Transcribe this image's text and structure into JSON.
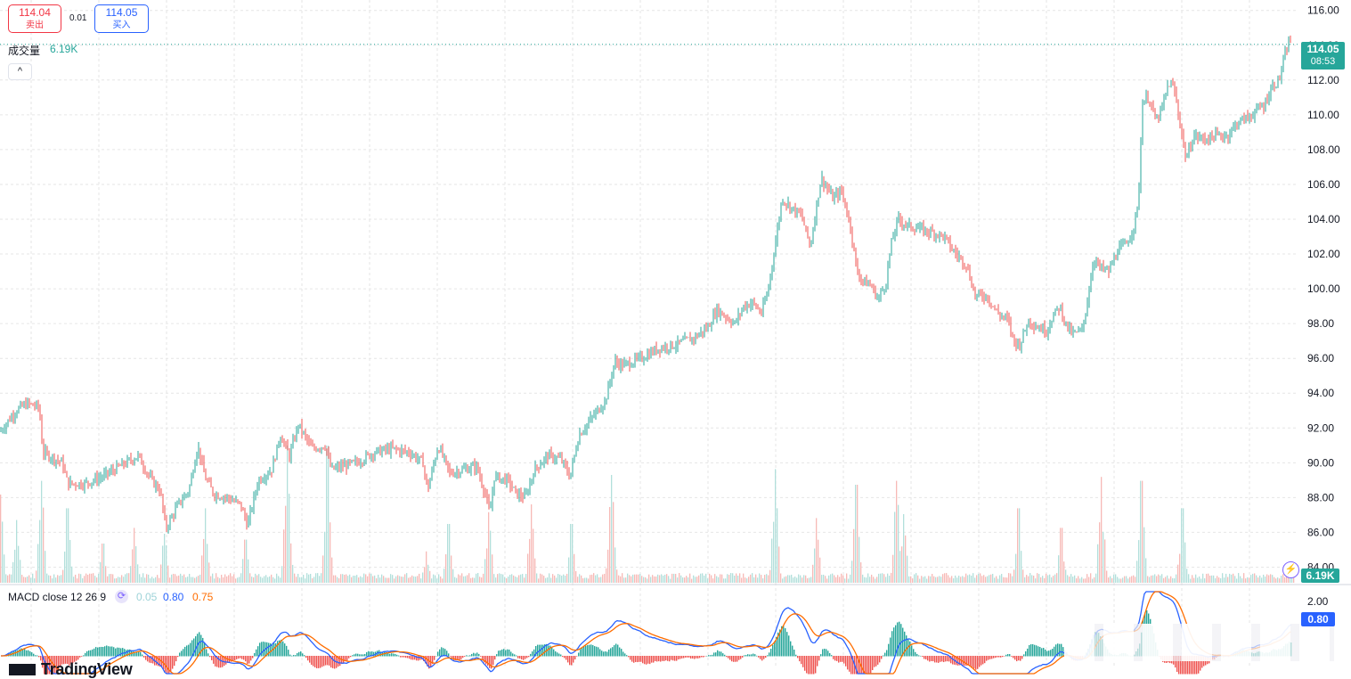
{
  "order_panel": {
    "sell_price": "114.04",
    "sell_label": "卖出",
    "spread": "0.01",
    "buy_price": "114.05",
    "buy_label": "买入"
  },
  "volume_legend": {
    "label": "成交量",
    "value": "6.19K"
  },
  "collapse_glyph": "^",
  "macd_legend": {
    "label": "MACD close 12 26 9",
    "hist_value": "0.05",
    "macd_value": "0.80",
    "signal_value": "0.75"
  },
  "last_price_tag": {
    "price": "114.05",
    "countdown": "08:53"
  },
  "volume_tag": "6.19K",
  "macd_tag": "0.80",
  "macd_axis_label": "2.00",
  "branding": "TradingView",
  "colors": {
    "up": "#26a69a",
    "down": "#ef5350",
    "macd_line": "#2962ff",
    "signal_line": "#ff6d00",
    "grid": "#e6e6e6"
  },
  "chart_data": {
    "type": "candlestick",
    "y_axis_ticks": [
      "116.00",
      "114.00",
      "112.00",
      "110.00",
      "108.00",
      "106.00",
      "104.00",
      "102.00",
      "100.00",
      "98.00",
      "96.00",
      "94.00",
      "92.00",
      "90.00",
      "88.00",
      "86.00",
      "84.00"
    ],
    "ylim": [
      83.0,
      116.6
    ],
    "last_price": 114.05,
    "close_path": [
      [
        0,
        91.8
      ],
      [
        18,
        93.0
      ],
      [
        30,
        93.4
      ],
      [
        44,
        93.2
      ],
      [
        48,
        90.6
      ],
      [
        70,
        90.0
      ],
      [
        76,
        88.8
      ],
      [
        95,
        88.8
      ],
      [
        115,
        89.2
      ],
      [
        135,
        89.8
      ],
      [
        155,
        90.4
      ],
      [
        170,
        89.0
      ],
      [
        180,
        88.4
      ],
      [
        186,
        86.2
      ],
      [
        200,
        87.6
      ],
      [
        212,
        88.4
      ],
      [
        222,
        91.0
      ],
      [
        230,
        89.2
      ],
      [
        240,
        88.2
      ],
      [
        255,
        88.0
      ],
      [
        270,
        87.6
      ],
      [
        278,
        86.4
      ],
      [
        290,
        89.0
      ],
      [
        305,
        89.6
      ],
      [
        315,
        91.6
      ],
      [
        325,
        90.4
      ],
      [
        335,
        92.2
      ],
      [
        350,
        90.8
      ],
      [
        365,
        91.0
      ],
      [
        372,
        89.6
      ],
      [
        385,
        89.8
      ],
      [
        400,
        90.0
      ],
      [
        420,
        90.6
      ],
      [
        440,
        90.8
      ],
      [
        460,
        90.6
      ],
      [
        475,
        90.0
      ],
      [
        480,
        88.4
      ],
      [
        492,
        91.0
      ],
      [
        505,
        89.4
      ],
      [
        520,
        89.6
      ],
      [
        535,
        89.8
      ],
      [
        545,
        88.2
      ],
      [
        550,
        87.0
      ],
      [
        555,
        89.2
      ],
      [
        570,
        89.0
      ],
      [
        580,
        88.2
      ],
      [
        590,
        88.0
      ],
      [
        600,
        89.6
      ],
      [
        615,
        90.4
      ],
      [
        630,
        90.2
      ],
      [
        640,
        89.2
      ],
      [
        650,
        91.6
      ],
      [
        665,
        92.6
      ],
      [
        680,
        93.6
      ],
      [
        690,
        95.8
      ],
      [
        700,
        95.6
      ],
      [
        720,
        96.0
      ],
      [
        740,
        96.6
      ],
      [
        760,
        96.8
      ],
      [
        780,
        97.2
      ],
      [
        795,
        97.8
      ],
      [
        805,
        98.8
      ],
      [
        815,
        98.4
      ],
      [
        825,
        98.0
      ],
      [
        835,
        99.0
      ],
      [
        845,
        99.2
      ],
      [
        855,
        98.6
      ],
      [
        862,
        99.8
      ],
      [
        870,
        102.4
      ],
      [
        878,
        105.2
      ],
      [
        890,
        104.6
      ],
      [
        900,
        104.2
      ],
      [
        910,
        102.4
      ],
      [
        915,
        104.2
      ],
      [
        922,
        106.4
      ],
      [
        935,
        105.2
      ],
      [
        945,
        105.6
      ],
      [
        955,
        103.6
      ],
      [
        962,
        101.0
      ],
      [
        970,
        100.4
      ],
      [
        978,
        100.2
      ],
      [
        986,
        99.4
      ],
      [
        995,
        100.4
      ],
      [
        1000,
        102.4
      ],
      [
        1008,
        104.0
      ],
      [
        1020,
        103.6
      ],
      [
        1035,
        103.4
      ],
      [
        1050,
        103.2
      ],
      [
        1060,
        103.0
      ],
      [
        1070,
        102.2
      ],
      [
        1085,
        101.4
      ],
      [
        1095,
        99.6
      ],
      [
        1108,
        99.6
      ],
      [
        1120,
        98.6
      ],
      [
        1132,
        98.2
      ],
      [
        1138,
        97.0
      ],
      [
        1145,
        96.8
      ],
      [
        1155,
        98.2
      ],
      [
        1165,
        97.8
      ],
      [
        1175,
        97.6
      ],
      [
        1182,
        98.4
      ],
      [
        1190,
        99.0
      ],
      [
        1198,
        97.8
      ],
      [
        1205,
        97.4
      ],
      [
        1215,
        97.6
      ],
      [
        1222,
        99.6
      ],
      [
        1228,
        101.8
      ],
      [
        1235,
        101.2
      ],
      [
        1245,
        101.0
      ],
      [
        1255,
        102.2
      ],
      [
        1265,
        102.6
      ],
      [
        1272,
        103.4
      ],
      [
        1278,
        104.8
      ],
      [
        1283,
        110.8
      ],
      [
        1290,
        111.0
      ],
      [
        1298,
        109.6
      ],
      [
        1305,
        110.4
      ],
      [
        1312,
        111.8
      ],
      [
        1318,
        111.6
      ],
      [
        1324,
        109.8
      ],
      [
        1332,
        107.4
      ],
      [
        1340,
        108.8
      ],
      [
        1352,
        108.6
      ],
      [
        1365,
        108.8
      ],
      [
        1378,
        108.8
      ],
      [
        1390,
        109.6
      ],
      [
        1400,
        109.8
      ],
      [
        1410,
        110.2
      ],
      [
        1420,
        110.6
      ],
      [
        1428,
        111.6
      ],
      [
        1436,
        112.0
      ],
      [
        1442,
        113.2
      ],
      [
        1448,
        114.4
      ],
      [
        1450,
        114.05
      ]
    ],
    "volume_spikes": [
      [
        0,
        0.45
      ],
      [
        18,
        0.32
      ],
      [
        46,
        0.52
      ],
      [
        75,
        0.38
      ],
      [
        115,
        0.2
      ],
      [
        150,
        0.28
      ],
      [
        184,
        0.25
      ],
      [
        230,
        0.38
      ],
      [
        275,
        0.22
      ],
      [
        322,
        0.7
      ],
      [
        367,
        0.7
      ],
      [
        478,
        0.16
      ],
      [
        503,
        0.3
      ],
      [
        548,
        0.36
      ],
      [
        596,
        0.4
      ],
      [
        641,
        0.3
      ],
      [
        686,
        0.55
      ],
      [
        870,
        0.58
      ],
      [
        916,
        0.33
      ],
      [
        961,
        0.5
      ],
      [
        1006,
        0.52
      ],
      [
        1014,
        0.35
      ],
      [
        1143,
        0.38
      ],
      [
        1191,
        0.28
      ],
      [
        1236,
        0.54
      ],
      [
        1281,
        0.52
      ],
      [
        1327,
        0.38
      ]
    ]
  }
}
